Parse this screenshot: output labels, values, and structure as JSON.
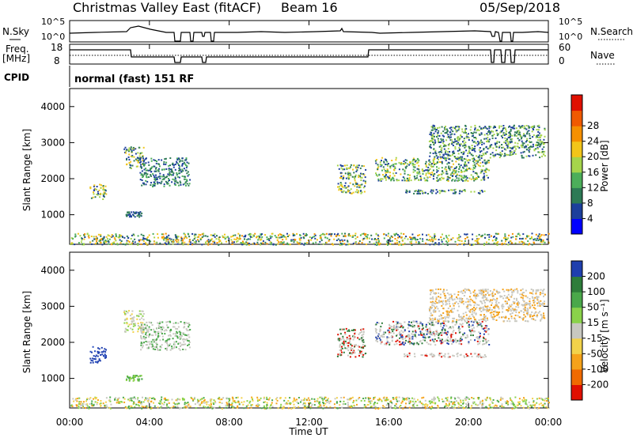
{
  "header": {
    "title": "Christmas Valley East (fitACF)",
    "beam": "Beam 16",
    "date": "05/Sep/2018"
  },
  "panels": {
    "nsky": {
      "label": "N.Sky",
      "right_label": "N.Search",
      "tick_top": "10^5",
      "tick_bottom": "10^0"
    },
    "freq": {
      "label_line1": "Freq.",
      "label_line2": "[MHz]",
      "right_label": "Nave",
      "ticks_left": [
        "18",
        "8"
      ],
      "ticks_right": [
        "60",
        "0"
      ]
    },
    "cpid": {
      "label": "CPID",
      "value": "normal (fast) 151 RF"
    }
  },
  "x_axis": {
    "label": "Time UT",
    "ticks": [
      "00:00",
      "04:00",
      "08:00",
      "12:00",
      "16:00",
      "20:00",
      "00:00"
    ]
  },
  "chart_data": [
    {
      "type": "heatmap",
      "panel": "power",
      "ylabel": "Slant Range [km]",
      "y_ticks": [
        "1000",
        "2000",
        "3000",
        "4000"
      ],
      "colorbar_label": "Power [dB]",
      "colorbar_ticks": [
        "4",
        "8",
        "12",
        "16",
        "20",
        "24",
        "28"
      ],
      "colorbar_colors": [
        "#0000ff",
        "#1c3f9c",
        "#2d7a55",
        "#4cae5a",
        "#a5d44b",
        "#f2c51a",
        "#f59000",
        "#f05a00",
        "#e01000"
      ],
      "x_range_hours": [
        0,
        24
      ],
      "y_range_km": [
        180,
        4500
      ],
      "regions": [
        {
          "t0": 1.0,
          "t1": 1.8,
          "r0": 1450,
          "r1": 1900,
          "colors": [
            "#2d7a55",
            "#a5d44b",
            "#f2c51a",
            "#1c3f9c"
          ]
        },
        {
          "t0": 2.7,
          "t1": 3.7,
          "r0": 2300,
          "r1": 2900,
          "colors": [
            "#a5d44b",
            "#f2c51a",
            "#2d7a55",
            "#1c3f9c"
          ]
        },
        {
          "t0": 3.5,
          "t1": 6.0,
          "r0": 1800,
          "r1": 2600,
          "colors": [
            "#1c3f9c",
            "#2d7a55",
            "#4cae5a"
          ]
        },
        {
          "t0": 2.8,
          "t1": 3.6,
          "r0": 950,
          "r1": 1100,
          "colors": [
            "#2d7a55",
            "#1c3f9c"
          ]
        },
        {
          "t0": 13.4,
          "t1": 14.8,
          "r0": 1600,
          "r1": 2400,
          "colors": [
            "#a5d44b",
            "#f2c51a",
            "#2d7a55",
            "#1c3f9c"
          ]
        },
        {
          "t0": 15.3,
          "t1": 21.0,
          "r0": 1950,
          "r1": 2600,
          "colors": [
            "#a5d44b",
            "#f2c51a",
            "#2d7a55",
            "#1c3f9c",
            "#4cae5a"
          ]
        },
        {
          "t0": 16.7,
          "t1": 21.0,
          "r0": 1600,
          "r1": 1720,
          "colors": [
            "#a5d44b",
            "#2d7a55",
            "#1c3f9c"
          ]
        },
        {
          "t0": 18.0,
          "t1": 23.8,
          "r0": 2600,
          "r1": 3500,
          "colors": [
            "#2d7a55",
            "#1c3f9c",
            "#a5d44b"
          ]
        },
        {
          "t0": 0.0,
          "t1": 24.0,
          "r0": 180,
          "r1": 500,
          "colors": [
            "#2d7a55",
            "#1c3f9c",
            "#4cae5a",
            "#a5d44b",
            "#f2c51a",
            "#f59000"
          ]
        }
      ]
    },
    {
      "type": "heatmap",
      "panel": "velocity",
      "ylabel": "Slant Range [km]",
      "y_ticks": [
        "1000",
        "2000",
        "3000",
        "4000"
      ],
      "colorbar_label": "Velocity [m s⁻¹]",
      "colorbar_ticks": [
        "200",
        "100",
        "50",
        "15",
        "-15",
        "-50",
        "-100",
        "-200"
      ],
      "colorbar_colors": [
        "#1f3fae",
        "#2e7d3a",
        "#4aa84a",
        "#8ad24a",
        "#c8c8c0",
        "#f2d24a",
        "#f5a21a",
        "#f06a00",
        "#e01000"
      ],
      "x_range_hours": [
        0,
        24
      ],
      "y_range_km": [
        180,
        4500
      ],
      "regions": [
        {
          "t0": 1.0,
          "t1": 1.8,
          "r0": 1450,
          "r1": 1900,
          "colors": [
            "#1f3fae",
            "#1f3fae",
            "#2a4fc0"
          ]
        },
        {
          "t0": 2.7,
          "t1": 3.7,
          "r0": 2300,
          "r1": 2900,
          "colors": [
            "#c8c8c0",
            "#c8c8c0",
            "#f2d24a",
            "#8ad24a"
          ]
        },
        {
          "t0": 3.5,
          "t1": 6.0,
          "r0": 1800,
          "r1": 2600,
          "colors": [
            "#c8c8c0",
            "#c8c8c0",
            "#4aa84a"
          ]
        },
        {
          "t0": 2.8,
          "t1": 3.6,
          "r0": 950,
          "r1": 1100,
          "colors": [
            "#4aa84a",
            "#8ad24a"
          ]
        },
        {
          "t0": 13.4,
          "t1": 14.8,
          "r0": 1600,
          "r1": 2400,
          "colors": [
            "#c8c8c0",
            "#c8c8c0",
            "#e01000",
            "#2e7d3a"
          ]
        },
        {
          "t0": 15.3,
          "t1": 21.0,
          "r0": 1950,
          "r1": 2600,
          "colors": [
            "#c8c8c0",
            "#c8c8c0",
            "#c8c8c0",
            "#e01000",
            "#1f3fae",
            "#2e7d3a"
          ]
        },
        {
          "t0": 16.7,
          "t1": 21.0,
          "r0": 1600,
          "r1": 1720,
          "colors": [
            "#c8c8c0",
            "#c8c8c0",
            "#e01000"
          ]
        },
        {
          "t0": 18.0,
          "t1": 23.8,
          "r0": 2600,
          "r1": 3500,
          "colors": [
            "#c8c8c0",
            "#c8c8c0",
            "#f5a21a"
          ]
        },
        {
          "t0": 0.0,
          "t1": 24.0,
          "r0": 180,
          "r1": 500,
          "colors": [
            "#f2d24a",
            "#f5a21a",
            "#8ad24a",
            "#4aa84a",
            "#c8c8c0"
          ]
        }
      ]
    }
  ]
}
